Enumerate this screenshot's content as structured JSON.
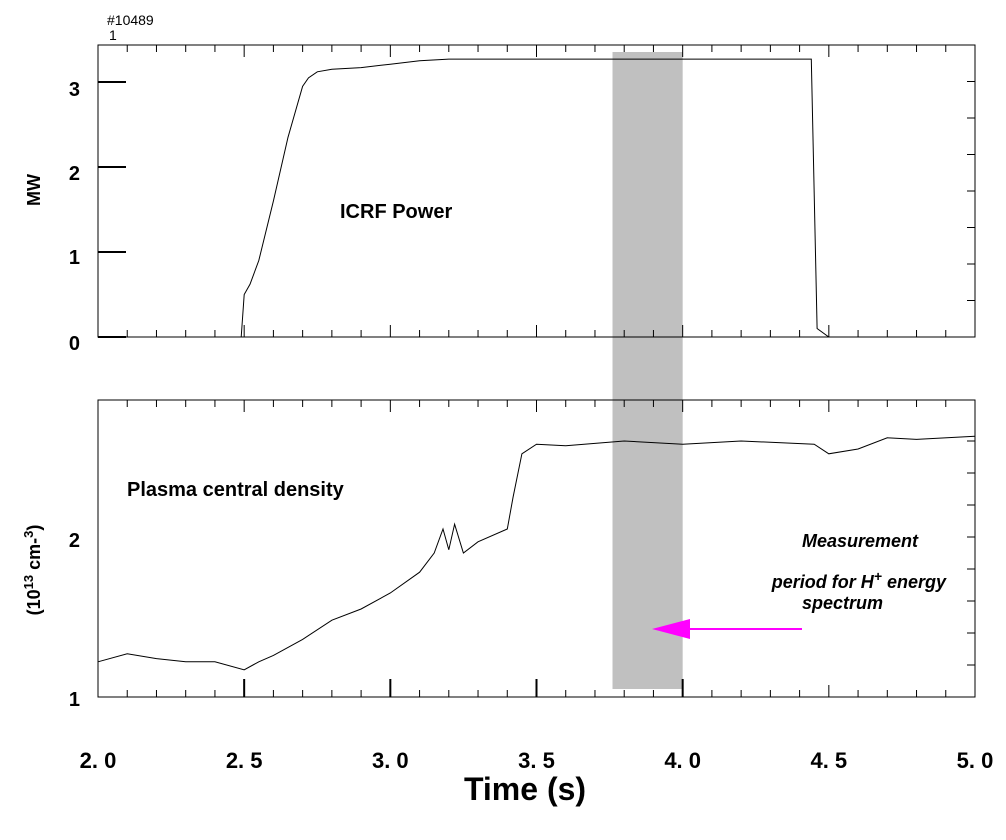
{
  "shot_label_line1": "#10489",
  "shot_label_line2": "1",
  "xlabel": "Time (s)",
  "x_ticks": [
    "2. 0",
    "2. 5",
    "3. 0",
    "3. 5",
    "4. 0",
    "4. 5",
    "5. 0"
  ],
  "annotation": {
    "line1": "Measurement",
    "line2_prefix": "period for H",
    "line2_sup": "+",
    "line2_suffix": " energy",
    "line3": "spectrum",
    "arrow_color": "#ff00ff"
  },
  "highlight_color": "#c0c0c0",
  "chart_data": [
    {
      "type": "line",
      "title": "ICRF Power",
      "xlabel": "Time (s)",
      "ylabel": "MW",
      "xlim": [
        2.0,
        5.0
      ],
      "ylim": [
        0,
        3.25
      ],
      "y_tick_labels": [
        "0",
        "1",
        "2",
        "3"
      ],
      "shaded_interval": [
        3.76,
        4.0
      ],
      "x": [
        2.0,
        2.49,
        2.5,
        2.52,
        2.55,
        2.6,
        2.65,
        2.7,
        2.72,
        2.75,
        2.8,
        2.9,
        3.0,
        3.1,
        3.2,
        3.5,
        4.0,
        4.44,
        4.46,
        4.5,
        5.0
      ],
      "y": [
        0.0,
        0.0,
        0.5,
        0.62,
        0.9,
        1.6,
        2.35,
        2.95,
        3.05,
        3.12,
        3.15,
        3.17,
        3.21,
        3.25,
        3.27,
        3.27,
        3.27,
        3.27,
        0.1,
        0.0,
        0.0
      ]
    },
    {
      "type": "line",
      "title": "Plasma central density",
      "xlabel": "Time (s)",
      "ylabel_prefix": "(10",
      "ylabel_sup1": "13",
      "ylabel_mid": " cm-",
      "ylabel_sup2": "3",
      "ylabel_suffix": ")",
      "xlim": [
        2.0,
        5.0
      ],
      "ylim": [
        1.0,
        2.8
      ],
      "y_tick_labels": [
        "1",
        "2"
      ],
      "shaded_interval": [
        3.76,
        4.0
      ],
      "x": [
        2.0,
        2.1,
        2.2,
        2.3,
        2.4,
        2.5,
        2.55,
        2.6,
        2.7,
        2.8,
        2.9,
        3.0,
        3.1,
        3.15,
        3.18,
        3.2,
        3.22,
        3.25,
        3.3,
        3.4,
        3.42,
        3.45,
        3.5,
        3.6,
        3.8,
        4.0,
        4.2,
        4.45,
        4.5,
        4.6,
        4.7,
        4.8,
        5.0
      ],
      "y": [
        1.22,
        1.27,
        1.24,
        1.22,
        1.22,
        1.17,
        1.22,
        1.26,
        1.36,
        1.48,
        1.55,
        1.65,
        1.78,
        1.9,
        2.05,
        1.92,
        2.08,
        1.9,
        1.97,
        2.05,
        2.25,
        2.52,
        2.58,
        2.57,
        2.6,
        2.58,
        2.6,
        2.58,
        2.52,
        2.55,
        2.62,
        2.61,
        2.63
      ]
    }
  ]
}
